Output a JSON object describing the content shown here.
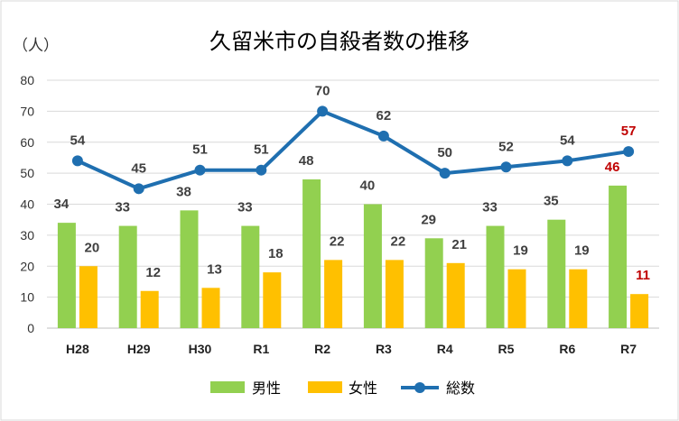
{
  "chart_data": {
    "type": "bar",
    "title": "久留米市の自殺者数の推移",
    "y_unit": "（人）",
    "categories": [
      "H28",
      "H29",
      "H30",
      "R1",
      "R2",
      "R3",
      "R4",
      "R5",
      "R6",
      "R7"
    ],
    "ylim": [
      0,
      80
    ],
    "yticks": [
      0,
      10,
      20,
      30,
      40,
      50,
      60,
      70,
      80
    ],
    "grid": true,
    "legend_position": "bottom",
    "series": [
      {
        "name": "男性",
        "type": "bar",
        "color": "#92D050",
        "values": [
          34,
          33,
          38,
          33,
          48,
          40,
          29,
          33,
          35,
          46
        ]
      },
      {
        "name": "女性",
        "type": "bar",
        "color": "#FFC000",
        "values": [
          20,
          12,
          13,
          18,
          22,
          22,
          21,
          19,
          19,
          11
        ]
      },
      {
        "name": "総数",
        "type": "line",
        "color": "#1F6FB0",
        "values": [
          54,
          45,
          51,
          51,
          70,
          62,
          50,
          52,
          54,
          57
        ]
      }
    ],
    "label_colors": {
      "default": "#404040",
      "highlight": "#C00000"
    },
    "highlight_category": "R7"
  }
}
